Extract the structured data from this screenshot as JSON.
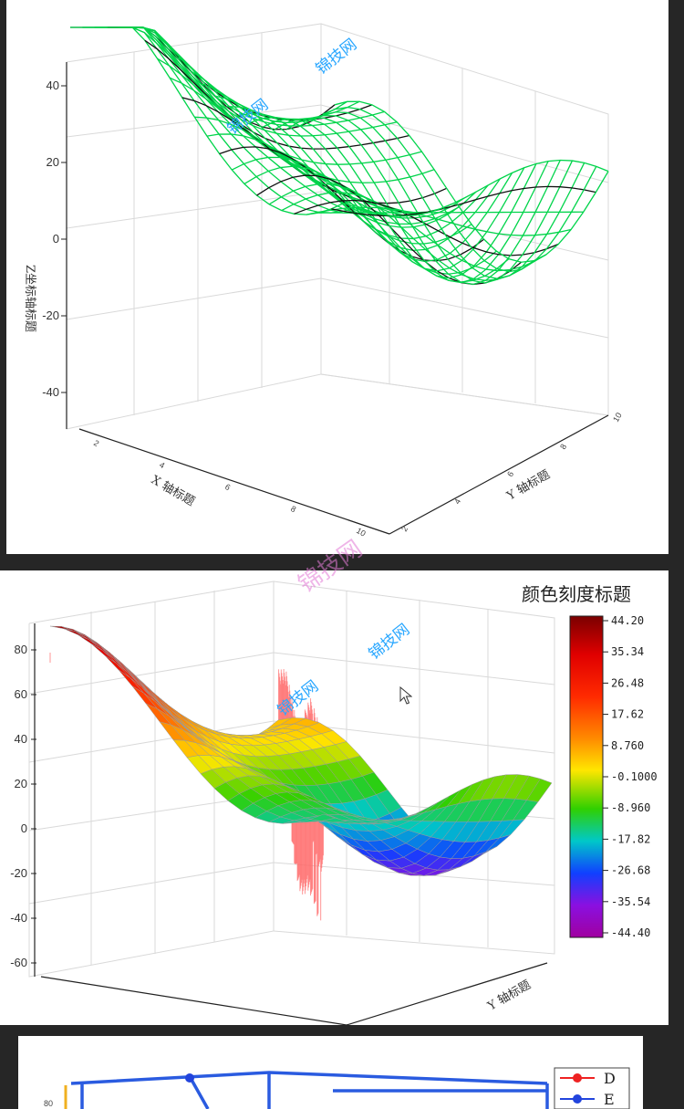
{
  "chart_data": [
    {
      "type": "surface-3d-wireframe",
      "zlabel": "Z坐标轴标题",
      "xlabel": "X 轴标题",
      "ylabel": "Y 轴标题",
      "zticks": [
        "40",
        "20",
        "0",
        "-20",
        "-40"
      ],
      "xticks": [
        "2",
        "4",
        "6",
        "8",
        "10"
      ],
      "yticks": [
        "2",
        "4",
        "6",
        "8",
        "10"
      ],
      "zlim": [
        -45,
        45
      ],
      "colors": {
        "front": "#00d44a",
        "back": "#111111"
      },
      "watermarks": [
        "锦技网",
        "锦技网"
      ]
    },
    {
      "type": "surface-3d-colormap",
      "zticks": [
        "80",
        "60",
        "40",
        "20",
        "0",
        "-20",
        "-40",
        "-60"
      ],
      "ylabel": "Y 轴标题",
      "colorbar": {
        "title": "颜色刻度标题",
        "ticks": [
          "44.20",
          "35.34",
          "26.48",
          "17.62",
          "8.760",
          "-0.1000",
          "-8.960",
          "-17.82",
          "-26.68",
          "-35.54",
          "-44.40"
        ],
        "range": [
          -44.4,
          44.2
        ]
      },
      "watermarks": [
        "锦技网",
        "锦技网"
      ]
    },
    {
      "type": "3d-line",
      "zticks": [
        "80"
      ],
      "legend": [
        {
          "name": "D",
          "color": "#ee2222"
        },
        {
          "name": "E",
          "color": "#2244dd"
        }
      ]
    }
  ],
  "overlay_watermark": "锦技网"
}
